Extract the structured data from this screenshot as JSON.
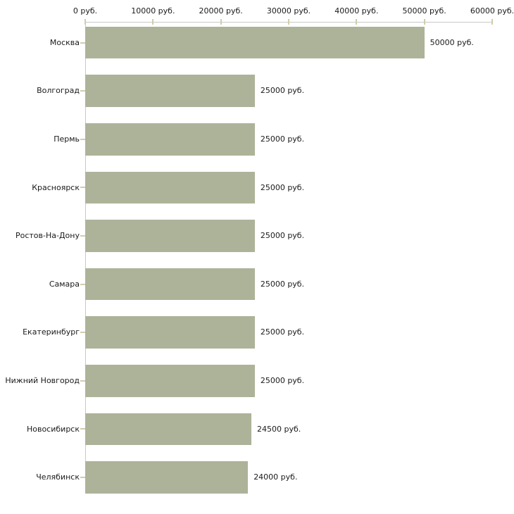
{
  "chart_data": {
    "type": "bar",
    "orientation": "horizontal",
    "title": "",
    "xlabel": "",
    "ylabel": "",
    "categories": [
      "Москва",
      "Волгоград",
      "Пермь",
      "Красноярск",
      "Ростов-На-Дону",
      "Самара",
      "Екатеринбург",
      "Нижний Новгород",
      "Новосибирск",
      "Челябинск"
    ],
    "values": [
      50000,
      25000,
      25000,
      25000,
      25000,
      25000,
      25000,
      25000,
      24500,
      24000
    ],
    "value_labels": [
      "50000 руб.",
      "25000 руб.",
      "25000 руб.",
      "25000 руб.",
      "25000 руб.",
      "25000 руб.",
      "25000 руб.",
      "25000 руб.",
      "24500 руб.",
      "24000 руб."
    ],
    "x_tick_values": [
      0,
      10000,
      20000,
      30000,
      40000,
      50000,
      60000
    ],
    "x_tick_labels": [
      "0 руб.",
      "10000 руб.",
      "20000 руб.",
      "30000 руб.",
      "40000 руб.",
      "50000 руб.",
      "60000 руб."
    ],
    "xlim": [
      0,
      60000
    ],
    "axis_position": "top",
    "grid": false,
    "legend": false,
    "colors": {
      "bar": "#adb399",
      "axis_line": "#c8c8c8",
      "tick_mark": "#d0cdac",
      "text": "#1a1a1a",
      "background": "#ffffff"
    }
  }
}
